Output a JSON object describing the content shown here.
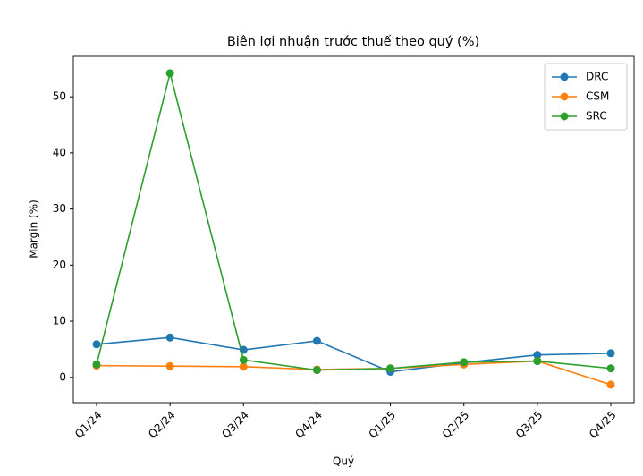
{
  "chart_data": {
    "type": "line",
    "title": "Biên lợi nhuận trước thuế theo quý (%)",
    "x_label": "Quý",
    "y_label": "Margin (%)",
    "categories": [
      "Q1/24",
      "Q2/24",
      "Q3/24",
      "Q4/24",
      "Q1/25",
      "Q2/25",
      "Q3/25",
      "Q4/25"
    ],
    "series": [
      {
        "name": "DRC",
        "color": "#1f77b4",
        "values": [
          5.9,
          7.1,
          4.9,
          6.5,
          1.0,
          2.6,
          4.0,
          4.3
        ]
      },
      {
        "name": "CSM",
        "color": "#ff7f0e",
        "values": [
          2.1,
          2.0,
          1.9,
          1.4,
          1.6,
          2.3,
          2.9,
          -1.3
        ]
      },
      {
        "name": "SRC",
        "color": "#2ca02c",
        "values": [
          2.3,
          54.2,
          3.1,
          1.3,
          1.6,
          2.7,
          2.9,
          1.6
        ]
      }
    ],
    "ylim": [
      -4.5,
      57.2
    ],
    "yticks": [
      0,
      10,
      20,
      30,
      40,
      50
    ],
    "legend": "upper right",
    "grid": false
  }
}
